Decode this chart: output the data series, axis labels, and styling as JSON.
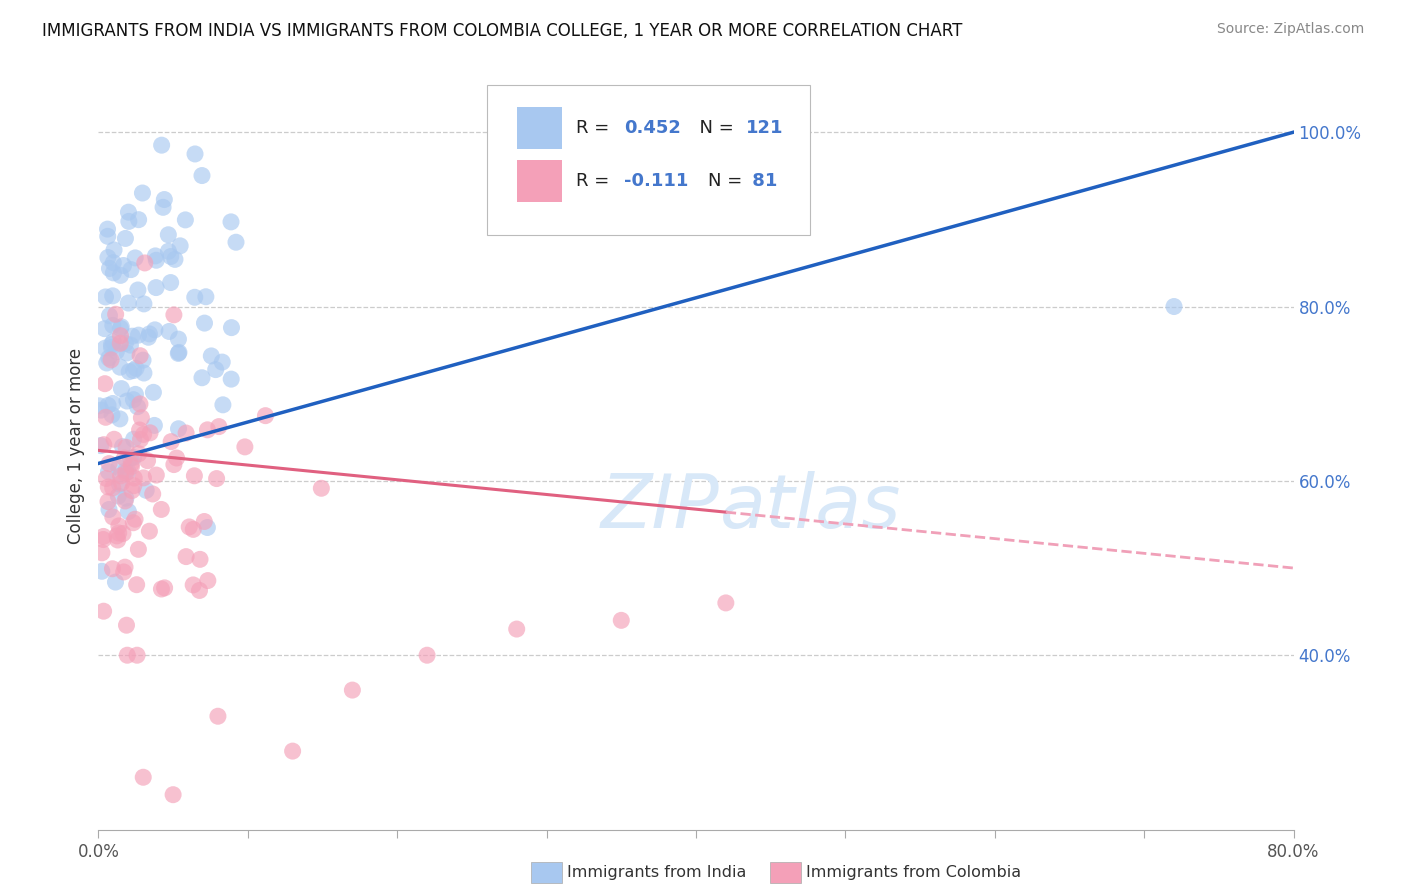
{
  "title": "IMMIGRANTS FROM INDIA VS IMMIGRANTS FROM COLOMBIA COLLEGE, 1 YEAR OR MORE CORRELATION CHART",
  "source": "Source: ZipAtlas.com",
  "ylabel": "College, 1 year or more",
  "legend_bottom": [
    "Immigrants from India",
    "Immigrants from Colombia"
  ],
  "india_R": 0.452,
  "india_N": 121,
  "colombia_R": -0.111,
  "colombia_N": 81,
  "xlim": [
    0.0,
    0.8
  ],
  "ylim": [
    0.2,
    1.08
  ],
  "india_color": "#a8c8f0",
  "colombia_color": "#f4a0b8",
  "india_line_color": "#2060c0",
  "colombia_line_color": "#e06080",
  "colombia_line_dashed_color": "#f0a0b8",
  "watermark_color": "#d8e8f8",
  "background_color": "#ffffff",
  "grid_color": "#cccccc",
  "right_label_color": "#4477cc",
  "title_color": "#111111",
  "source_color": "#888888"
}
